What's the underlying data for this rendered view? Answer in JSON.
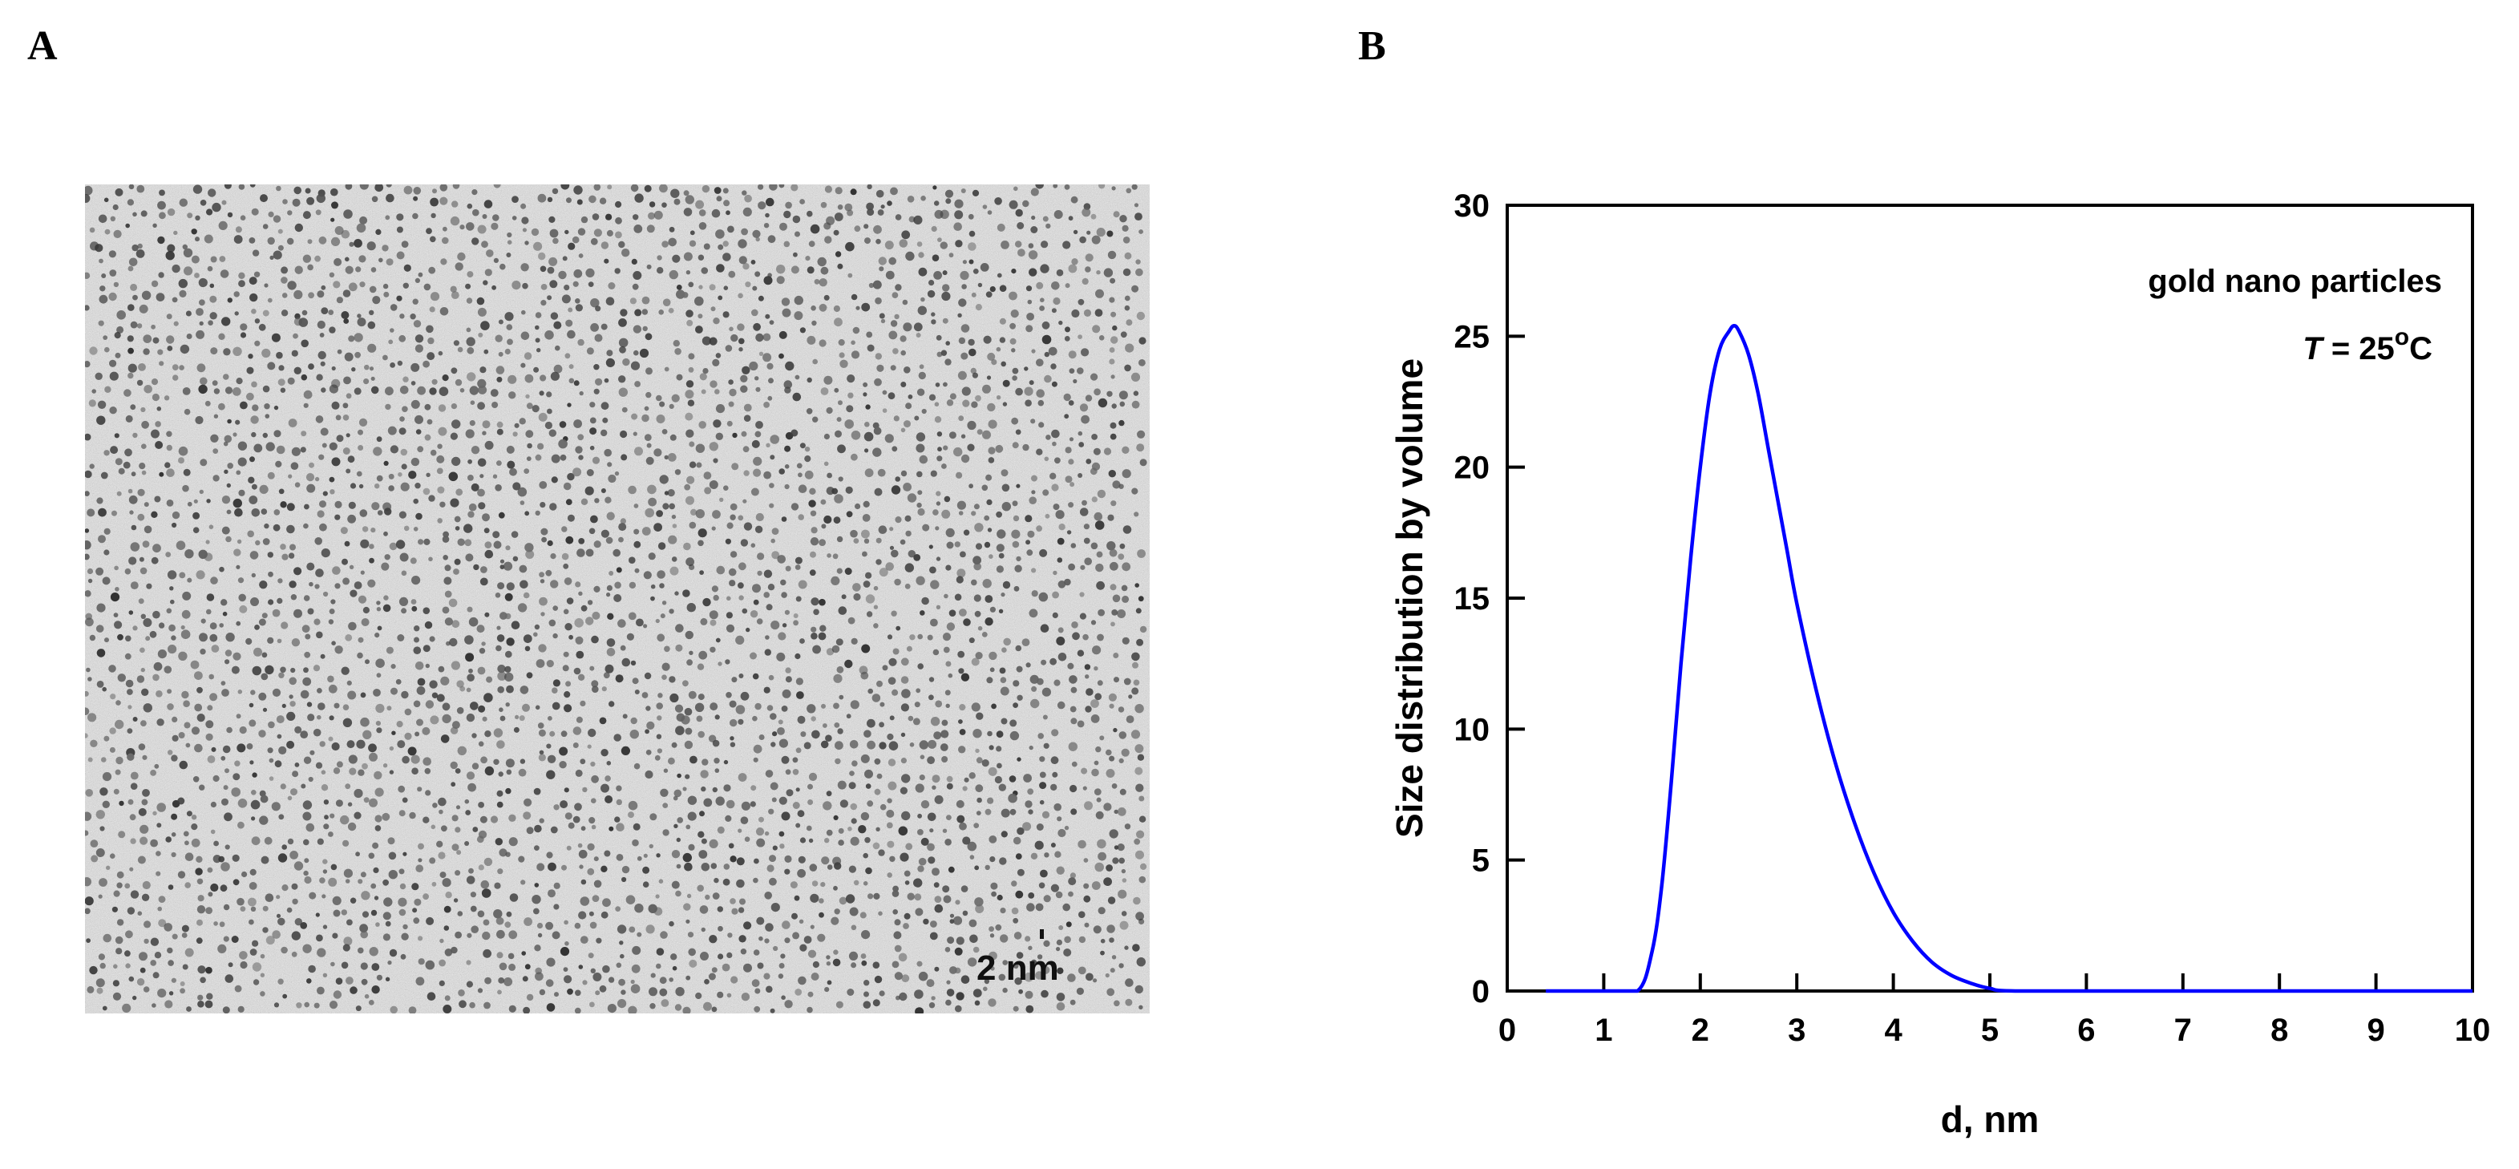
{
  "panels": {
    "a_letter": "A",
    "b_letter": "B"
  },
  "micrograph": {
    "scale_label": "2 nm"
  },
  "chart_data": {
    "type": "line",
    "title": "",
    "xlabel": "d, nm",
    "ylabel": "Size distribution by volume",
    "xlim": [
      0,
      10
    ],
    "ylim": [
      0,
      30
    ],
    "xticks": [
      0,
      1,
      2,
      3,
      4,
      5,
      6,
      7,
      8,
      9,
      10
    ],
    "yticks": [
      0,
      5,
      10,
      15,
      20,
      25,
      30
    ],
    "annotations": {
      "line1": "gold nano particles",
      "temp_symbol": "T",
      "temp_eq": " = 25",
      "temp_degree": "o",
      "temp_unit": "C"
    },
    "legend": "none",
    "grid": false,
    "series": [
      {
        "color": "#0000ff",
        "x": [
          0.4,
          1.0,
          1.35,
          1.5,
          1.6,
          1.7,
          1.8,
          1.9,
          2.0,
          2.1,
          2.2,
          2.3,
          2.35,
          2.4,
          2.5,
          2.6,
          2.7,
          2.8,
          2.9,
          3.0,
          3.2,
          3.4,
          3.6,
          3.8,
          4.0,
          4.2,
          4.4,
          4.6,
          4.8,
          5.0,
          5.3,
          7.0,
          10.0
        ],
        "y": [
          0,
          0,
          0,
          1.5,
          4.0,
          8.0,
          12.5,
          16.5,
          20.0,
          22.8,
          24.5,
          25.2,
          25.4,
          25.2,
          24.3,
          22.8,
          20.8,
          18.8,
          16.8,
          14.8,
          11.5,
          8.7,
          6.4,
          4.5,
          3.0,
          1.9,
          1.1,
          0.6,
          0.3,
          0.1,
          0,
          0,
          0
        ]
      }
    ]
  }
}
